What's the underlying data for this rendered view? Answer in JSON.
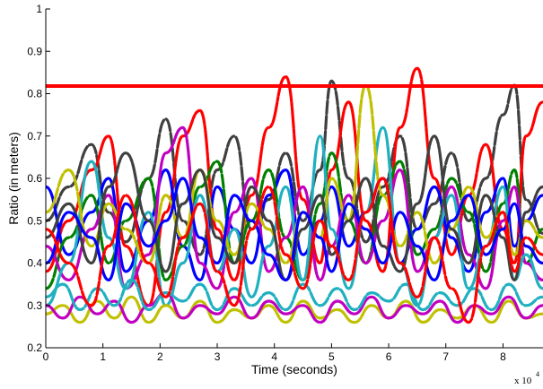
{
  "chart_data": {
    "type": "line",
    "title": "",
    "xlabel": "Time (seconds)",
    "ylabel": "Ratio (in meters)",
    "x_scale_label": "x 10",
    "x_scale_exponent": "4",
    "xlim": [
      0,
      8.7
    ],
    "ylim": [
      0.2,
      1.0
    ],
    "x_ticks": [
      0,
      1,
      2,
      3,
      4,
      5,
      6,
      7,
      8
    ],
    "x_tick_labels": [
      "0",
      "1",
      "2",
      "3",
      "4",
      "5",
      "6",
      "7",
      "8"
    ],
    "y_ticks": [
      0.2,
      0.3,
      0.4,
      0.5,
      0.6,
      0.7,
      0.8,
      0.9,
      1.0
    ],
    "y_tick_labels": [
      "0.2",
      "0.3",
      "0.4",
      "0.5",
      "0.6",
      "0.7",
      "0.8",
      "0.9",
      "1"
    ],
    "grid": false,
    "threshold": {
      "y": 0.818,
      "color": "#ff0000"
    },
    "series": [
      {
        "color": "#404040",
        "x": [
          0,
          0.4,
          0.8,
          1.1,
          1.4,
          1.8,
          2.1,
          2.4,
          2.7,
          3.0,
          3.3,
          3.6,
          3.9,
          4.2,
          4.5,
          4.8,
          5.0,
          5.3,
          5.6,
          5.9,
          6.2,
          6.5,
          6.8,
          7.1,
          7.4,
          7.7,
          8.0,
          8.2,
          8.4,
          8.7
        ],
        "y": [
          0.5,
          0.58,
          0.68,
          0.52,
          0.45,
          0.6,
          0.74,
          0.5,
          0.42,
          0.62,
          0.7,
          0.48,
          0.55,
          0.66,
          0.5,
          0.62,
          0.83,
          0.6,
          0.45,
          0.58,
          0.7,
          0.48,
          0.54,
          0.66,
          0.5,
          0.6,
          0.75,
          0.82,
          0.55,
          0.47
        ]
      },
      {
        "color": "#ff0000",
        "x": [
          0,
          0.4,
          0.8,
          1.1,
          1.4,
          1.8,
          2.1,
          2.4,
          2.7,
          3.0,
          3.3,
          3.6,
          3.9,
          4.2,
          4.5,
          4.8,
          5.0,
          5.3,
          5.6,
          5.9,
          6.2,
          6.5,
          6.8,
          7.1,
          7.4,
          7.7,
          8.0,
          8.2,
          8.4,
          8.7
        ],
        "y": [
          0.38,
          0.5,
          0.62,
          0.7,
          0.44,
          0.3,
          0.52,
          0.7,
          0.76,
          0.48,
          0.36,
          0.56,
          0.72,
          0.84,
          0.55,
          0.4,
          0.62,
          0.78,
          0.5,
          0.38,
          0.72,
          0.86,
          0.6,
          0.42,
          0.56,
          0.68,
          0.48,
          0.4,
          0.7,
          0.78
        ]
      },
      {
        "color": "#0000ff",
        "x": [
          0,
          0.4,
          0.8,
          1.1,
          1.4,
          1.8,
          2.1,
          2.4,
          2.7,
          3.0,
          3.3,
          3.6,
          3.9,
          4.2,
          4.5,
          4.8,
          5.0,
          5.3,
          5.6,
          5.9,
          6.2,
          6.5,
          6.8,
          7.1,
          7.4,
          7.7,
          8.0,
          8.2,
          8.4,
          8.7
        ],
        "y": [
          0.58,
          0.42,
          0.52,
          0.6,
          0.38,
          0.5,
          0.62,
          0.44,
          0.36,
          0.58,
          0.48,
          0.4,
          0.56,
          0.62,
          0.42,
          0.5,
          0.58,
          0.44,
          0.52,
          0.6,
          0.4,
          0.48,
          0.58,
          0.46,
          0.38,
          0.52,
          0.6,
          0.44,
          0.5,
          0.56
        ]
      },
      {
        "color": "#008000",
        "x": [
          0,
          0.4,
          0.8,
          1.1,
          1.4,
          1.8,
          2.1,
          2.4,
          2.7,
          3.0,
          3.3,
          3.6,
          3.9,
          4.2,
          4.5,
          4.8,
          5.0,
          5.3,
          5.6,
          5.9,
          6.2,
          6.5,
          6.8,
          7.1,
          7.4,
          7.7,
          8.0,
          8.2,
          8.4,
          8.7
        ],
        "y": [
          0.34,
          0.46,
          0.56,
          0.4,
          0.5,
          0.6,
          0.36,
          0.44,
          0.58,
          0.64,
          0.4,
          0.5,
          0.62,
          0.46,
          0.36,
          0.54,
          0.66,
          0.5,
          0.4,
          0.56,
          0.64,
          0.42,
          0.48,
          0.6,
          0.52,
          0.38,
          0.54,
          0.62,
          0.4,
          0.48
        ]
      },
      {
        "color": "#c000c0",
        "x": [
          0,
          0.4,
          0.8,
          1.1,
          1.4,
          1.8,
          2.1,
          2.4,
          2.7,
          3.0,
          3.3,
          3.6,
          3.9,
          4.2,
          4.5,
          4.8,
          5.0,
          5.3,
          5.6,
          5.9,
          6.2,
          6.5,
          6.8,
          7.1,
          7.4,
          7.7,
          8.0,
          8.2,
          8.4,
          8.7
        ],
        "y": [
          0.44,
          0.36,
          0.48,
          0.56,
          0.34,
          0.42,
          0.66,
          0.72,
          0.4,
          0.34,
          0.52,
          0.6,
          0.38,
          0.46,
          0.58,
          0.36,
          0.44,
          0.56,
          0.4,
          0.5,
          0.62,
          0.38,
          0.46,
          0.58,
          0.42,
          0.34,
          0.5,
          0.58,
          0.4,
          0.36
        ]
      },
      {
        "color": "#20b0c0",
        "x": [
          0,
          0.4,
          0.8,
          1.1,
          1.4,
          1.8,
          2.1,
          2.4,
          2.7,
          3.0,
          3.3,
          3.6,
          3.9,
          4.2,
          4.5,
          4.8,
          5.0,
          5.3,
          5.6,
          5.9,
          6.2,
          6.5,
          6.8,
          7.1,
          7.4,
          7.7,
          8.0,
          8.2,
          8.4,
          8.7
        ],
        "y": [
          0.3,
          0.4,
          0.64,
          0.46,
          0.34,
          0.52,
          0.3,
          0.4,
          0.56,
          0.38,
          0.48,
          0.32,
          0.44,
          0.58,
          0.36,
          0.7,
          0.48,
          0.34,
          0.52,
          0.72,
          0.4,
          0.3,
          0.46,
          0.56,
          0.34,
          0.44,
          0.58,
          0.36,
          0.42,
          0.34
        ]
      },
      {
        "color": "#c0c000",
        "x": [
          0,
          0.4,
          0.8,
          1.1,
          1.4,
          1.8,
          2.1,
          2.4,
          2.7,
          3.0,
          3.3,
          3.6,
          3.9,
          4.2,
          4.5,
          4.8,
          5.0,
          5.3,
          5.6,
          5.9,
          6.2,
          6.5,
          6.8,
          7.1,
          7.4,
          7.7,
          8.0,
          8.2,
          8.4,
          8.7
        ],
        "y": [
          0.52,
          0.62,
          0.44,
          0.54,
          0.48,
          0.4,
          0.56,
          0.46,
          0.62,
          0.5,
          0.42,
          0.54,
          0.48,
          0.4,
          0.52,
          0.46,
          0.6,
          0.5,
          0.82,
          0.56,
          0.44,
          0.52,
          0.4,
          0.48,
          0.58,
          0.46,
          0.52,
          0.42,
          0.5,
          0.46
        ]
      },
      {
        "color": "#c0c000",
        "x": [
          0,
          0.3,
          0.6,
          0.9,
          1.2,
          1.5,
          1.8,
          2.1,
          2.4,
          2.7,
          3.0,
          3.3,
          3.6,
          3.9,
          4.2,
          4.5,
          4.8,
          5.1,
          5.4,
          5.7,
          6.0,
          6.3,
          6.6,
          6.9,
          7.2,
          7.5,
          7.8,
          8.1,
          8.4,
          8.7
        ],
        "y": [
          0.28,
          0.3,
          0.26,
          0.31,
          0.27,
          0.32,
          0.26,
          0.3,
          0.27,
          0.31,
          0.26,
          0.29,
          0.27,
          0.3,
          0.26,
          0.31,
          0.27,
          0.29,
          0.26,
          0.3,
          0.27,
          0.31,
          0.26,
          0.29,
          0.27,
          0.3,
          0.26,
          0.31,
          0.27,
          0.28
        ]
      },
      {
        "color": "#c000c0",
        "x": [
          0,
          0.3,
          0.6,
          0.9,
          1.2,
          1.5,
          1.8,
          2.1,
          2.4,
          2.7,
          3.0,
          3.3,
          3.6,
          3.9,
          4.2,
          4.5,
          4.8,
          5.1,
          5.4,
          5.7,
          6.0,
          6.3,
          6.6,
          6.9,
          7.2,
          7.5,
          7.8,
          8.1,
          8.4,
          8.7
        ],
        "y": [
          0.3,
          0.27,
          0.32,
          0.28,
          0.31,
          0.26,
          0.3,
          0.33,
          0.27,
          0.3,
          0.28,
          0.32,
          0.27,
          0.31,
          0.28,
          0.3,
          0.26,
          0.31,
          0.28,
          0.32,
          0.27,
          0.3,
          0.28,
          0.31,
          0.26,
          0.3,
          0.28,
          0.32,
          0.27,
          0.3
        ]
      },
      {
        "color": "#20b0c0",
        "x": [
          0,
          0.3,
          0.6,
          0.9,
          1.2,
          1.5,
          1.8,
          2.1,
          2.4,
          2.7,
          3.0,
          3.3,
          3.6,
          3.9,
          4.2,
          4.5,
          4.8,
          5.1,
          5.4,
          5.7,
          6.0,
          6.3,
          6.6,
          6.9,
          7.2,
          7.5,
          7.8,
          8.1,
          8.4,
          8.7
        ],
        "y": [
          0.32,
          0.35,
          0.29,
          0.34,
          0.3,
          0.36,
          0.29,
          0.33,
          0.31,
          0.35,
          0.29,
          0.34,
          0.3,
          0.33,
          0.29,
          0.35,
          0.3,
          0.34,
          0.29,
          0.33,
          0.31,
          0.35,
          0.29,
          0.33,
          0.3,
          0.34,
          0.29,
          0.35,
          0.3,
          0.32
        ]
      },
      {
        "color": "#404040",
        "x": [
          0,
          0.4,
          0.8,
          1.1,
          1.4,
          1.8,
          2.1,
          2.4,
          2.7,
          3.0,
          3.3,
          3.6,
          3.9,
          4.2,
          4.5,
          4.8,
          5.0,
          5.3,
          5.6,
          5.9,
          6.2,
          6.5,
          6.8,
          7.1,
          7.4,
          7.7,
          8.0,
          8.2,
          8.4,
          8.7
        ],
        "y": [
          0.46,
          0.54,
          0.4,
          0.58,
          0.66,
          0.5,
          0.38,
          0.54,
          0.62,
          0.46,
          0.4,
          0.58,
          0.5,
          0.36,
          0.48,
          0.56,
          0.42,
          0.5,
          0.6,
          0.44,
          0.38,
          0.54,
          0.7,
          0.48,
          0.4,
          0.56,
          0.46,
          0.36,
          0.52,
          0.58
        ]
      },
      {
        "color": "#0000ff",
        "x": [
          0,
          0.4,
          0.8,
          1.1,
          1.4,
          1.8,
          2.1,
          2.4,
          2.7,
          3.0,
          3.3,
          3.6,
          3.9,
          4.2,
          4.5,
          4.8,
          5.0,
          5.3,
          5.6,
          5.9,
          6.2,
          6.5,
          6.8,
          7.1,
          7.4,
          7.7,
          8.0,
          8.2,
          8.4,
          8.7
        ],
        "y": [
          0.4,
          0.52,
          0.46,
          0.36,
          0.54,
          0.44,
          0.5,
          0.6,
          0.46,
          0.4,
          0.56,
          0.5,
          0.42,
          0.36,
          0.52,
          0.46,
          0.38,
          0.54,
          0.48,
          0.4,
          0.52,
          0.44,
          0.36,
          0.5,
          0.56,
          0.42,
          0.48,
          0.54,
          0.44,
          0.4
        ]
      },
      {
        "color": "#ff0000",
        "x": [
          0,
          0.4,
          0.8,
          1.1,
          1.4,
          1.8,
          2.1,
          2.4,
          2.7,
          3.0,
          3.3,
          3.6,
          3.9,
          4.2,
          4.5,
          4.8,
          5.0,
          5.3,
          5.6,
          5.9,
          6.2,
          6.5,
          6.8,
          7.1,
          7.4,
          7.7,
          8.0,
          8.2,
          8.4,
          8.7
        ],
        "y": [
          0.48,
          0.4,
          0.3,
          0.44,
          0.56,
          0.4,
          0.32,
          0.46,
          0.54,
          0.38,
          0.3,
          0.48,
          0.58,
          0.42,
          0.34,
          0.5,
          0.44,
          0.36,
          0.52,
          0.6,
          0.4,
          0.32,
          0.46,
          0.34,
          0.26,
          0.44,
          0.52,
          0.38,
          0.46,
          0.42
        ]
      }
    ]
  }
}
